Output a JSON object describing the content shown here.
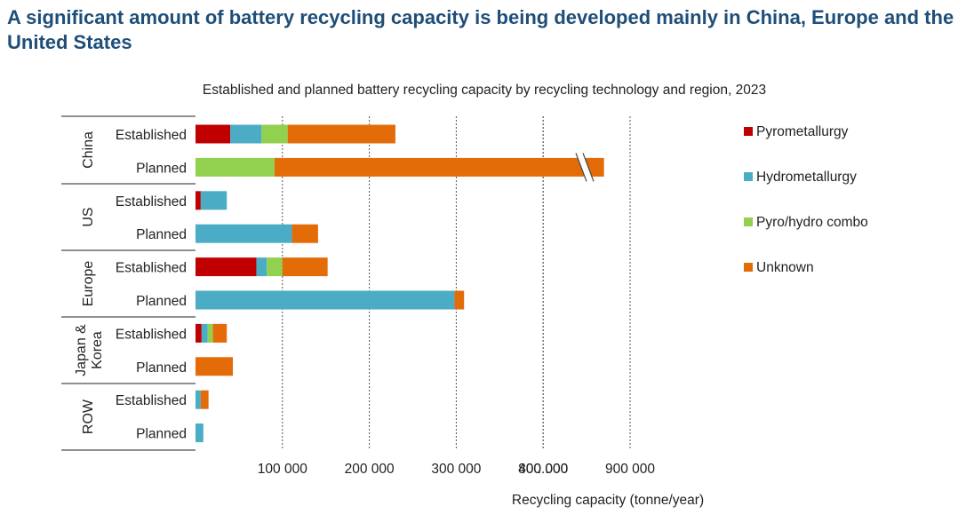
{
  "headline": "A significant amount of battery recycling capacity is being developed mainly in China, Europe and the United States",
  "chart_data": {
    "type": "bar",
    "orientation": "horizontal",
    "stacked": true,
    "title": "Established and planned battery recycling capacity by recycling technology and region, 2023",
    "xlabel": "Recycling capacity (tonne/year)",
    "xlim": [
      0,
      900000
    ],
    "axis_break": {
      "from": 400000,
      "to": 800000,
      "label": "..."
    },
    "x_ticks": [
      100000,
      200000,
      300000,
      400000,
      800000,
      900000
    ],
    "x_tick_labels": [
      "100 000",
      "200 000",
      "300 000",
      "400 000",
      "800 000",
      "900 000"
    ],
    "gridlines": "vertical dotted",
    "legend_position": "right",
    "groups": [
      {
        "name": "China",
        "rows": [
          "Established",
          "Planned"
        ]
      },
      {
        "name": "US",
        "rows": [
          "Established",
          "Planned"
        ]
      },
      {
        "name": "Europe",
        "rows": [
          "Established",
          "Planned"
        ]
      },
      {
        "name": "Japan & Korea",
        "rows": [
          "Established",
          "Planned"
        ]
      },
      {
        "name": "ROW",
        "rows": [
          "Established",
          "Planned"
        ]
      }
    ],
    "series": [
      {
        "name": "Pyrometallurgy",
        "color": "#C00000",
        "values": [
          40000,
          0,
          6000,
          0,
          70000,
          0,
          7000,
          0,
          0,
          0
        ]
      },
      {
        "name": "Hydrometallurgy",
        "color": "#4BACC6",
        "values": [
          36000,
          0,
          30000,
          111000,
          12000,
          298000,
          7000,
          0,
          6000,
          9000
        ]
      },
      {
        "name": "Pyro/hydro combo",
        "color": "#92D050",
        "values": [
          30000,
          91000,
          0,
          0,
          18000,
          0,
          6000,
          0,
          0,
          0
        ]
      },
      {
        "name": "Unknown",
        "color": "#E36C09",
        "values": [
          124000,
          779000,
          0,
          30000,
          52000,
          11000,
          16000,
          43000,
          9000,
          0
        ]
      }
    ]
  }
}
